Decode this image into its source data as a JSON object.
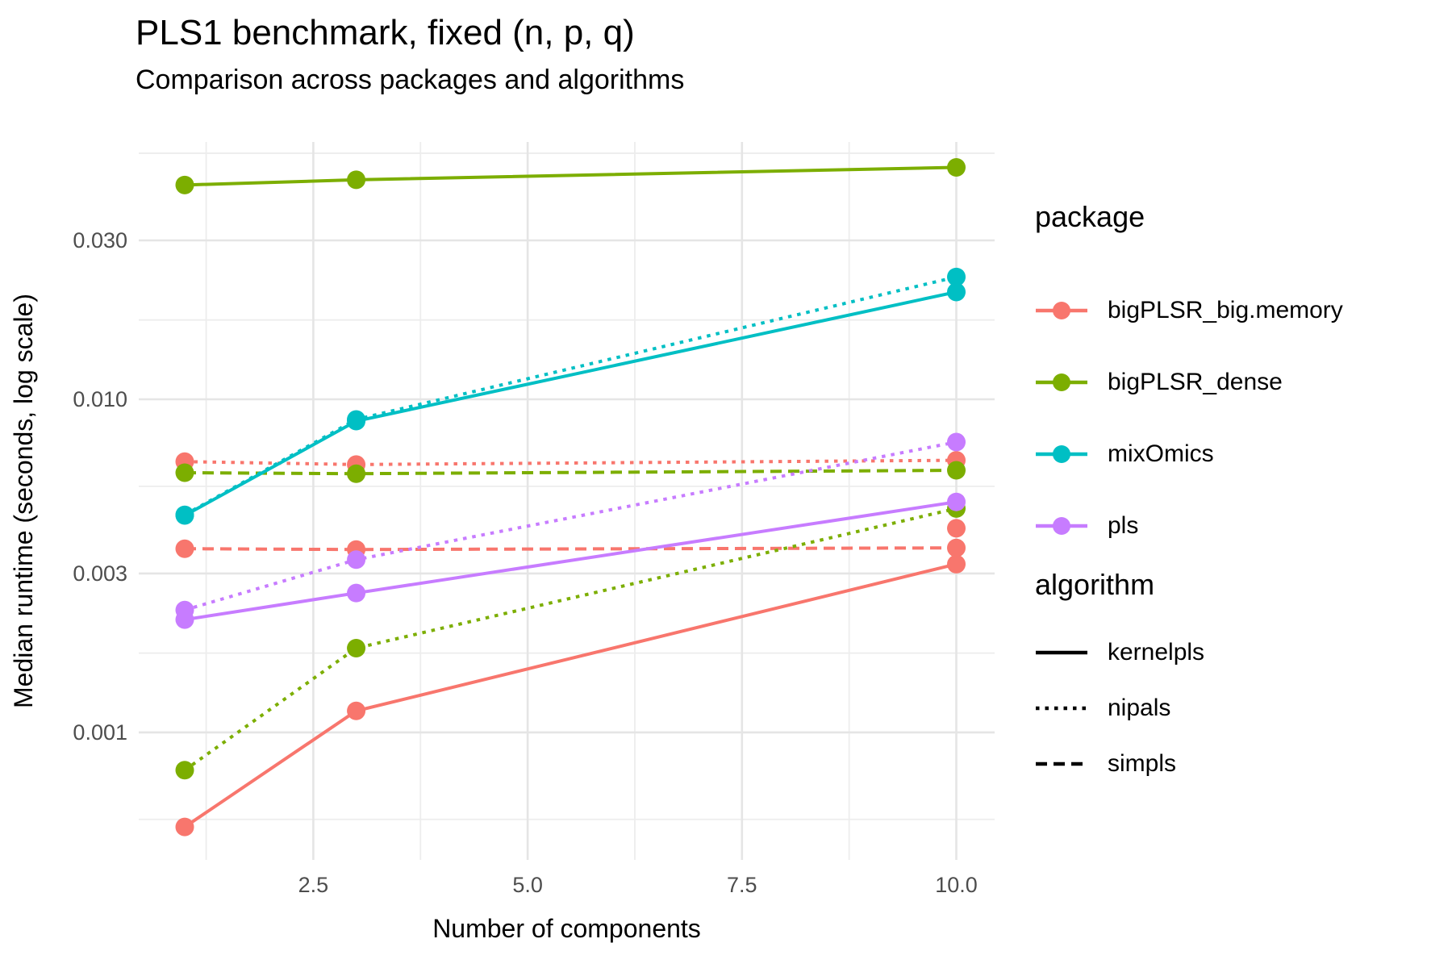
{
  "title": "PLS1 benchmark, fixed (n, p, q)",
  "subtitle": "Comparison across packages and algorithms",
  "chart_data": {
    "type": "line",
    "title": "PLS1 benchmark, fixed (n, p, q)",
    "subtitle": "Comparison across packages and algorithms",
    "xlabel": "Number of components",
    "ylabel": "Median runtime (seconds, log scale)",
    "x_scale": "linear",
    "y_scale": "log",
    "x": [
      1,
      3,
      10
    ],
    "x_ticks": [
      2.5,
      5.0,
      7.5,
      10.0
    ],
    "x_tick_labels": [
      "2.5",
      "5.0",
      "7.5",
      "10.0"
    ],
    "x_minor_ticks": [
      1.25,
      3.75,
      6.25,
      8.75
    ],
    "y_ticks": [
      0.03,
      0.01,
      0.003,
      0.001
    ],
    "y_tick_labels": [
      "0.030",
      "0.010",
      "0.003",
      "0.001"
    ],
    "y_minor_ticks": [
      0.0548,
      0.0173,
      0.00548,
      0.00173,
      0.000548
    ],
    "xlim": [
      0.55,
      10.45
    ],
    "ylim": [
      0.00042,
      0.059
    ],
    "grid": true,
    "grid_color_major": "#E5E5E5",
    "grid_color_minor": "#EDEDED",
    "axis_text_color": "#4D4D4D",
    "series": [
      {
        "package": "bigPLSR_big.memory",
        "algorithm": "nipals",
        "color": "#F8766D",
        "linetype": "dotted",
        "values": [
          0.0065,
          0.00637,
          0.00656
        ]
      },
      {
        "package": "bigPLSR_big.memory",
        "algorithm": "simpls",
        "color": "#F8766D",
        "linetype": "dashed",
        "values": [
          0.00356,
          0.00354,
          0.00358
        ]
      },
      {
        "package": "bigPLSR_big.memory",
        "algorithm": "kernelpls",
        "color": "#F8766D",
        "linetype": "solid",
        "values": [
          0.00052,
          0.00116,
          0.0032
        ]
      },
      {
        "package": "bigPLSR_dense",
        "algorithm": "kernelpls",
        "color": "#7CAE00",
        "linetype": "solid",
        "values": [
          0.044,
          0.0456,
          0.0497
        ]
      },
      {
        "package": "bigPLSR_dense",
        "algorithm": "simpls",
        "color": "#7CAE00",
        "linetype": "dashed",
        "values": [
          0.00602,
          0.00598,
          0.00612
        ]
      },
      {
        "package": "bigPLSR_dense",
        "algorithm": "nipals",
        "color": "#7CAE00",
        "linetype": "dotted",
        "values": [
          0.00077,
          0.00179,
          0.0047
        ]
      },
      {
        "package": "mixOmics",
        "algorithm": "kernelpls",
        "color": "#00BFC4",
        "linetype": "solid",
        "values": [
          0.00448,
          0.0086,
          0.021
        ]
      },
      {
        "package": "mixOmics",
        "algorithm": "nipals",
        "color": "#00BFC4",
        "linetype": "dotted",
        "values": [
          0.0045,
          0.0087,
          0.0233
        ]
      },
      {
        "package": "pls",
        "algorithm": "kernelpls",
        "color": "#C77CFF",
        "linetype": "solid",
        "values": [
          0.00218,
          0.00262,
          0.00492
        ]
      },
      {
        "package": "pls",
        "algorithm": "nipals",
        "color": "#C77CFF",
        "linetype": "dotted",
        "values": [
          0.00233,
          0.0033,
          0.00744
        ]
      }
    ],
    "extra_points": [
      {
        "package": "bigPLSR_big.memory",
        "color": "#F8766D",
        "x": 10,
        "value": 0.0041
      }
    ],
    "legend": {
      "package": {
        "title": "package",
        "entries": [
          {
            "label": "bigPLSR_big.memory",
            "color": "#F8766D"
          },
          {
            "label": "bigPLSR_dense",
            "color": "#7CAE00"
          },
          {
            "label": "mixOmics",
            "color": "#00BFC4"
          },
          {
            "label": "pls",
            "color": "#C77CFF"
          }
        ]
      },
      "algorithm": {
        "title": "algorithm",
        "entries": [
          {
            "label": "kernelpls",
            "linetype": "solid"
          },
          {
            "label": "nipals",
            "linetype": "dotted"
          },
          {
            "label": "simpls",
            "linetype": "dashed"
          }
        ]
      }
    }
  }
}
